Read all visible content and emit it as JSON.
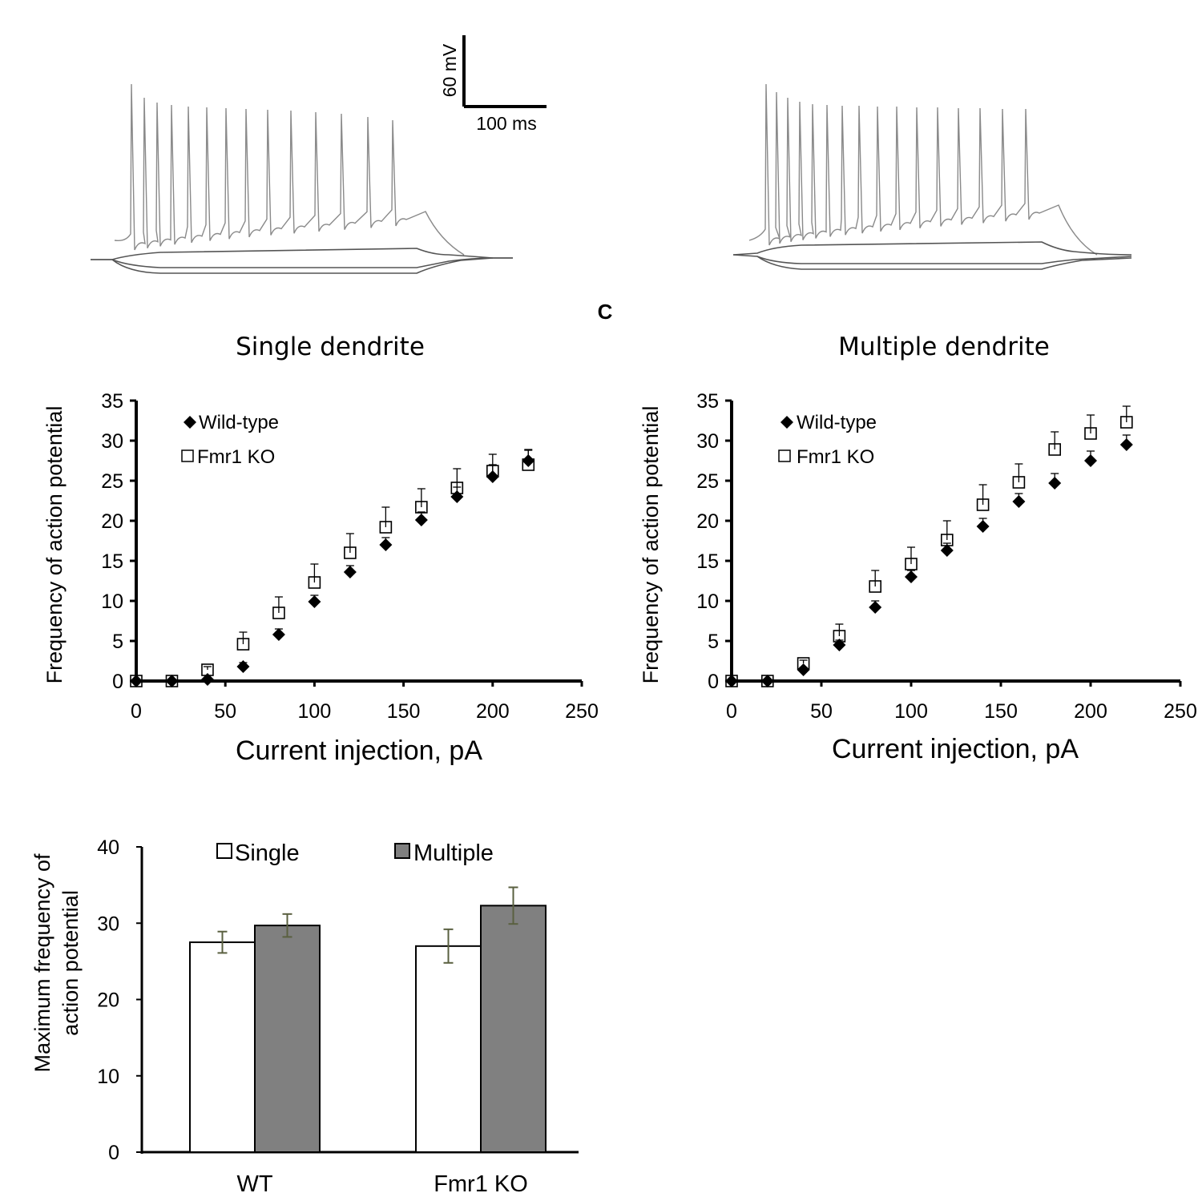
{
  "panel_label": "C",
  "scale_bar": {
    "voltage": "60 mV",
    "time": "100 ms"
  },
  "colors": {
    "single_bar": "#ffffff",
    "multiple_bar": "#808080",
    "error_bar": "#5a6040",
    "trace": "#8a8a8a"
  },
  "chart_data": [
    {
      "type": "scatter",
      "title": "Single dendrite",
      "xlabel": "Current injection, pA",
      "ylabel": "Frequency of action potential",
      "xlim": [
        0,
        250
      ],
      "ylim": [
        0,
        35
      ],
      "xticks": [
        "0",
        "50",
        "100",
        "150",
        "200",
        "250"
      ],
      "yticks": [
        "0",
        "5",
        "10",
        "15",
        "20",
        "25",
        "30",
        "35"
      ],
      "legend": [
        "Wild-type",
        "Fmr1 KO"
      ],
      "x": [
        0,
        20,
        40,
        60,
        80,
        100,
        120,
        140,
        160,
        180,
        200,
        220
      ],
      "series": [
        {
          "name": "Wild-type",
          "marker": "diamond",
          "values": [
            0,
            0,
            0.2,
            1.8,
            5.8,
            9.9,
            13.6,
            17.0,
            20.1,
            23.0,
            25.5,
            27.5
          ],
          "errors": [
            0,
            0,
            0.2,
            0.5,
            0.7,
            0.8,
            0.8,
            0.9,
            1.0,
            1.2,
            1.5,
            1.4
          ]
        },
        {
          "name": "Fmr1 KO",
          "marker": "square",
          "values": [
            0,
            0,
            1.4,
            4.6,
            8.5,
            12.3,
            16.0,
            19.2,
            21.7,
            24.1,
            26.2,
            27.0
          ],
          "errors": [
            0,
            0,
            0.4,
            1.5,
            2.0,
            2.3,
            2.4,
            2.5,
            2.3,
            2.4,
            2.1,
            1.8
          ]
        }
      ]
    },
    {
      "type": "scatter",
      "title": "Multiple dendrite",
      "xlabel": "Current injection, pA",
      "ylabel": "Frequency of action potential",
      "xlim": [
        0,
        250
      ],
      "ylim": [
        0,
        35
      ],
      "xticks": [
        "0",
        "50",
        "100",
        "150",
        "200",
        "250"
      ],
      "yticks": [
        "0",
        "5",
        "10",
        "15",
        "20",
        "25",
        "30",
        "35"
      ],
      "legend": [
        "Wild-type",
        "Fmr1 KO"
      ],
      "x": [
        0,
        20,
        40,
        60,
        80,
        100,
        120,
        140,
        160,
        180,
        200,
        220
      ],
      "series": [
        {
          "name": "Wild-type",
          "marker": "diamond",
          "values": [
            0,
            0,
            1.4,
            4.5,
            9.2,
            13.0,
            16.3,
            19.3,
            22.4,
            24.7,
            27.5,
            29.5
          ],
          "errors": [
            0,
            0,
            0.3,
            0.6,
            0.8,
            0.8,
            0.9,
            1.0,
            1.0,
            1.2,
            1.2,
            1.2
          ]
        },
        {
          "name": "Fmr1 KO",
          "marker": "square",
          "values": [
            0,
            0,
            2.2,
            5.6,
            11.8,
            14.6,
            17.6,
            22.0,
            24.8,
            28.9,
            30.9,
            32.3
          ],
          "errors": [
            0,
            0,
            0.4,
            1.5,
            2.0,
            2.1,
            2.4,
            2.5,
            2.3,
            2.2,
            2.3,
            2.0
          ]
        }
      ]
    },
    {
      "type": "bar",
      "title": "",
      "xlabel": "",
      "ylabel": "Maximum frequency of action potential",
      "ylabel_lines": [
        "Maximum frequency of",
        "action potential"
      ],
      "ylim": [
        0,
        40
      ],
      "yticks": [
        "0",
        "10",
        "20",
        "30",
        "40"
      ],
      "categories": [
        "WT",
        "Fmr1 KO"
      ],
      "legend": [
        "Single",
        "Multiple"
      ],
      "series": [
        {
          "name": "Single",
          "values": [
            27.5,
            27.0
          ],
          "errors": [
            1.4,
            2.2
          ]
        },
        {
          "name": "Multiple",
          "values": [
            29.7,
            32.3
          ],
          "errors": [
            1.5,
            2.4
          ]
        }
      ]
    }
  ]
}
